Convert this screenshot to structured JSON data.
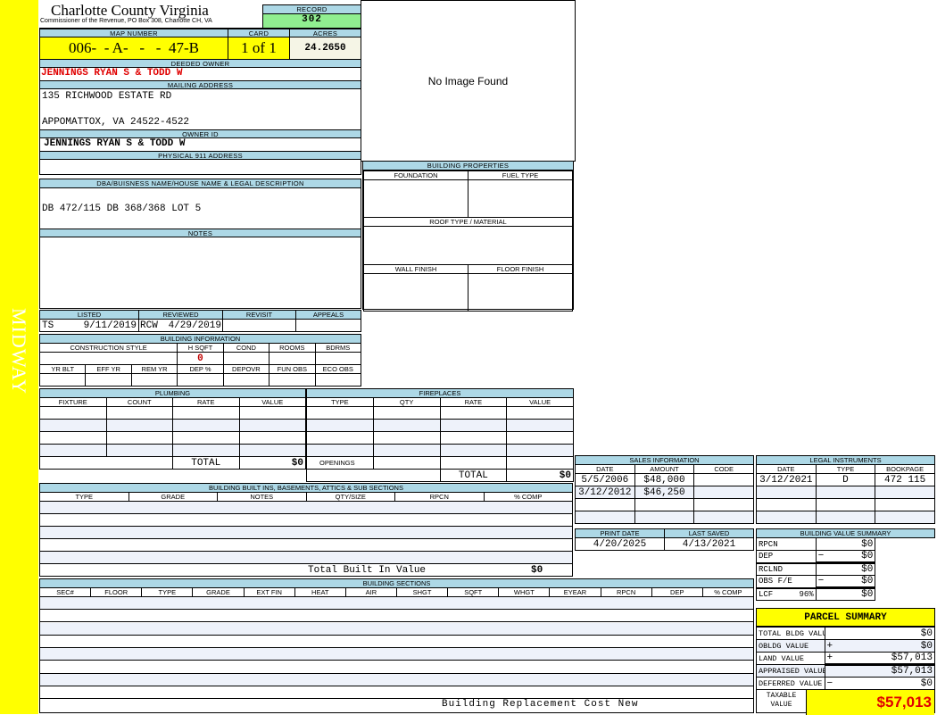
{
  "district": "MIDWAY",
  "header": {
    "title": "Charlotte County Virginia",
    "subtitle": "Commissioner of the Revenue, PO Box 308, Charlotte CH, VA",
    "record_label": "RECORD",
    "record": "302"
  },
  "map": {
    "map_label": "MAP NUMBER",
    "map_number": "006-  - A-   -   -  47-B",
    "card_label": "CARD",
    "card": "1 of 1",
    "acres_label": "ACRES",
    "acres": "24.2650"
  },
  "owner": {
    "deeded_label": "DEEDED OWNER",
    "deeded": "JENNINGS RYAN S & TODD W",
    "mailing_label": "MAILING ADDRESS",
    "mailing_line1": "135 RICHWOOD ESTATE RD",
    "mailing_line2": "APPOMATTOX, VA 24522-4522",
    "id_label": "OWNER ID",
    "owner_id": "JENNINGS RYAN S & TODD W",
    "physical_label": "PHYSICAL 911 ADDRESS",
    "physical": ""
  },
  "image": {
    "text": "No Image Found"
  },
  "dba": {
    "label": "DBA/BUISNESS NAME/HOUSE NAME & LEGAL DESCRIPTION",
    "value": "DB 472/115 DB 368/368 LOT 5",
    "notes_label": "NOTES"
  },
  "props": {
    "title": "BUILDING PROPERTIES",
    "foundation": "FOUNDATION",
    "fuel": "FUEL TYPE",
    "roof": "ROOF TYPE / MATERIAL",
    "wall": "WALL FINISH",
    "floor": "FLOOR FINISH"
  },
  "listing": {
    "listed_label": "LISTED",
    "listed_by": "TS",
    "listed_date": "9/11/2019",
    "reviewed_label": "REVIEWED",
    "reviewed_by": "RCW",
    "reviewed_date": "4/29/2019",
    "revisit_label": "REVISIT",
    "appeals_label": "APPEALS"
  },
  "building_info": {
    "title": "BUILDING INFORMATION",
    "row1": [
      "CONSTRUCTION STYLE",
      "H SQFT",
      "COND",
      "ROOMS",
      "BDRMS"
    ],
    "hsqft": "0",
    "row2": [
      "YR BLT",
      "EFF YR",
      "REM YR",
      "DEP %",
      "DEPOVR",
      "FUN OBS",
      "ECO OBS"
    ]
  },
  "plumbing": {
    "title": "PLUMBING",
    "columns": [
      "FIXTURE",
      "COUNT",
      "RATE",
      "VALUE"
    ],
    "total_label": "TOTAL",
    "total": "$0"
  },
  "fireplaces": {
    "title": "FIREPLACES",
    "columns": [
      "TYPE",
      "QTY",
      "RATE",
      "VALUE"
    ],
    "openings_label": "OPENINGS",
    "total_label": "TOTAL",
    "total": "$0"
  },
  "sales": {
    "title": "SALES INFORMATION",
    "columns": [
      "DATE",
      "AMOUNT",
      "CODE"
    ],
    "rows": [
      [
        "5/5/2006",
        "$48,000",
        ""
      ],
      [
        "3/12/2012",
        "$46,250",
        ""
      ]
    ]
  },
  "legal": {
    "title": "LEGAL INSTRUMENTS",
    "columns": [
      "DATE",
      "TYPE",
      "BOOKPAGE"
    ],
    "rows": [
      [
        "3/12/2021",
        "D",
        "472 115"
      ]
    ]
  },
  "dates": {
    "print_label": "PRINT DATE",
    "print_date": "4/20/2025",
    "saved_label": "LAST SAVED",
    "last_saved": "4/13/2021"
  },
  "builtins": {
    "title": "BUILDING BUILT INS, BASEMENTS, ATTICS & SUB SECTIONS",
    "columns": [
      "TYPE",
      "GRADE",
      "NOTES",
      "QTY/SIZE",
      "RPCN",
      "% COMP"
    ],
    "total_label": "Total Built In Value",
    "total": "$0"
  },
  "bvs": {
    "title": "BUILDING VALUE SUMMARY",
    "rows": [
      {
        "label": "RPCN",
        "pct": "",
        "op": "",
        "value": "$0"
      },
      {
        "label": "DEP",
        "pct": "",
        "op": "−",
        "value": "$0"
      },
      {
        "label": "RCLND",
        "pct": "",
        "op": "",
        "value": "$0"
      },
      {
        "label": "OBS F/E",
        "pct": "",
        "op": "−",
        "value": "$0"
      },
      {
        "label": "LCF",
        "pct": "96%",
        "op": "",
        "value": "$0"
      }
    ]
  },
  "sections": {
    "title": "BUILDING SECTIONS",
    "columns": [
      "SEC#",
      "FLOOR",
      "TYPE",
      "GRADE",
      "EXT FIN",
      "HEAT",
      "AIR",
      "SHGT",
      "SQFT",
      "WHGT",
      "EYEAR",
      "RPCN",
      "DEP",
      "% COMP"
    ],
    "footer": "Building Replacement Cost New"
  },
  "parcel": {
    "title": "PARCEL SUMMARY",
    "rows": [
      {
        "label": "TOTAL BLDG VALUE",
        "op": "",
        "value": "$0"
      },
      {
        "label": "OBLDG VALUE",
        "op": "+",
        "value": "$0"
      },
      {
        "label": "LAND VALUE",
        "op": "+",
        "value": "$57,013"
      },
      {
        "label": "APPRAISED VALUE",
        "op": "",
        "value": "$57,013"
      },
      {
        "label": "DEFERRED VALUE",
        "op": "−",
        "value": "$0"
      }
    ],
    "taxable_label": "TAXABLE VALUE",
    "taxable": "$57,013"
  },
  "colors": {
    "header_blue": "#add8e6",
    "yellow": "#ffff00",
    "record_green": "#90ee90",
    "owner_red": "#e00000"
  }
}
